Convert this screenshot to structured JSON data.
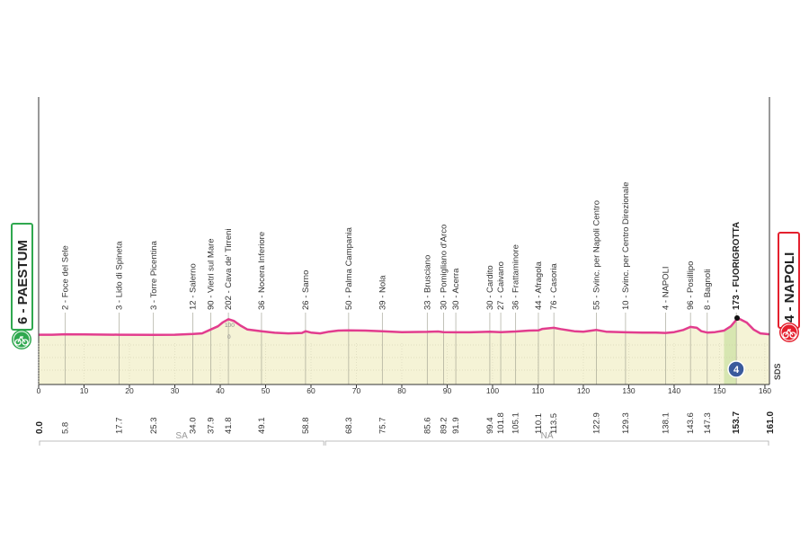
{
  "chart_data": {
    "type": "area",
    "x_range": [
      0,
      161
    ],
    "y_range": [
      0,
      300
    ],
    "x_ticks": [
      0,
      10,
      20,
      30,
      40,
      50,
      60,
      70,
      80,
      90,
      100,
      110,
      120,
      130,
      140,
      150,
      160
    ],
    "elevation_profile": [
      [
        0,
        6
      ],
      [
        3,
        6
      ],
      [
        5.8,
        8
      ],
      [
        10,
        7
      ],
      [
        17.7,
        6
      ],
      [
        25.3,
        5
      ],
      [
        30,
        6
      ],
      [
        34,
        9
      ],
      [
        36,
        12
      ],
      [
        37.9,
        30
      ],
      [
        39.5,
        45
      ],
      [
        40.5,
        62
      ],
      [
        41.8,
        78
      ],
      [
        43,
        70
      ],
      [
        44.5,
        48
      ],
      [
        46,
        30
      ],
      [
        49.1,
        22
      ],
      [
        52,
        15
      ],
      [
        55,
        12
      ],
      [
        58,
        14
      ],
      [
        58.8,
        22
      ],
      [
        60,
        16
      ],
      [
        62,
        12
      ],
      [
        64,
        20
      ],
      [
        66,
        25
      ],
      [
        68.3,
        26
      ],
      [
        72,
        25
      ],
      [
        75.7,
        22
      ],
      [
        80,
        18
      ],
      [
        85.6,
        19
      ],
      [
        88,
        21
      ],
      [
        89.2,
        18
      ],
      [
        91.9,
        17
      ],
      [
        95,
        17
      ],
      [
        99.4,
        20
      ],
      [
        101.8,
        18
      ],
      [
        105.1,
        21
      ],
      [
        108,
        25
      ],
      [
        110.1,
        26
      ],
      [
        111,
        33
      ],
      [
        113.5,
        38
      ],
      [
        115,
        32
      ],
      [
        118,
        22
      ],
      [
        120,
        20
      ],
      [
        122.9,
        28
      ],
      [
        125,
        20
      ],
      [
        129.3,
        17
      ],
      [
        133,
        16
      ],
      [
        136,
        16
      ],
      [
        138.1,
        14
      ],
      [
        140,
        18
      ],
      [
        142,
        28
      ],
      [
        143.6,
        42
      ],
      [
        145,
        38
      ],
      [
        146,
        22
      ],
      [
        147.3,
        16
      ],
      [
        149,
        18
      ],
      [
        151,
        25
      ],
      [
        152.5,
        45
      ],
      [
        153.7,
        75
      ],
      [
        154.5,
        78
      ],
      [
        156,
        62
      ],
      [
        157.5,
        30
      ],
      [
        159,
        12
      ],
      [
        161,
        8
      ]
    ],
    "start": {
      "label": "6 - PAESTUM",
      "color": "#2fa84f"
    },
    "finish": {
      "label": "4 - NAPOLI",
      "color": "#e4202e"
    },
    "waypoints": [
      {
        "km": 5.8,
        "label": "2 - Foce del Sele",
        "km_label": "5.8"
      },
      {
        "km": 17.7,
        "label": "3 - Lido di Spineta",
        "km_label": "17.7"
      },
      {
        "km": 25.3,
        "label": "3 - Torre Picentina",
        "km_label": "25.3"
      },
      {
        "km": 34.0,
        "label": "12 - Salerno",
        "km_label": "34.0"
      },
      {
        "km": 37.9,
        "label": "90 - Vietri sul Mare",
        "km_label": "37.9"
      },
      {
        "km": 41.8,
        "label": "202 - Cava de' Tirreni",
        "km_label": "41.8"
      },
      {
        "km": 49.1,
        "label": "36 - Nocera Inferiore",
        "km_label": "49.1"
      },
      {
        "km": 58.8,
        "label": "26 - Sarno",
        "km_label": "58.8"
      },
      {
        "km": 68.3,
        "label": "50 - Palma Campania",
        "km_label": "68.3"
      },
      {
        "km": 75.7,
        "label": "39 - Nola",
        "km_label": "75.7"
      },
      {
        "km": 85.6,
        "label": "33 - Brusciano",
        "km_label": "85.6"
      },
      {
        "km": 89.2,
        "label": "30 - Pomigliano d'Arco",
        "km_label": "89.2"
      },
      {
        "km": 91.9,
        "label": "30 - Acerra",
        "km_label": "91.9"
      },
      {
        "km": 99.4,
        "label": "30 - Cardito",
        "km_label": "99.4"
      },
      {
        "km": 101.8,
        "label": "27 - Caivano",
        "km_label": "101.8"
      },
      {
        "km": 105.1,
        "label": "36 - Frattaminore",
        "km_label": "105.1"
      },
      {
        "km": 110.1,
        "label": "44 - Afragola",
        "km_label": "110.1"
      },
      {
        "km": 113.5,
        "label": "76 - Casoria",
        "km_label": "113.5"
      },
      {
        "km": 122.9,
        "label": "55 - Svinc. per Napoli Centro",
        "km_label": "122.9"
      },
      {
        "km": 129.3,
        "label": "10 - Svinc. per Centro Direzionale",
        "km_label": "129.3"
      },
      {
        "km": 138.1,
        "label": "4 - NAPOLI",
        "km_label": "138.1"
      },
      {
        "km": 143.6,
        "label": "96 - Posillipo",
        "km_label": "143.6"
      },
      {
        "km": 147.3,
        "label": "8 - Bagnoli",
        "km_label": "147.3"
      },
      {
        "km": 153.7,
        "label": "173 - FUORIGROTTA",
        "km_label": "153.7",
        "bold": true
      }
    ],
    "start_km_label": "0.0",
    "finish_km_label": "161.0",
    "regions": [
      {
        "label": "SA",
        "from": 0,
        "to": 63
      },
      {
        "label": "NA",
        "from": 63,
        "to": 161
      }
    ],
    "altitude_marker": "100",
    "altitude_marker_small": "0",
    "finish_circuit_badge": "4",
    "brand_mark": "SDS",
    "colors": {
      "profile_line": "#e23d8e",
      "profile_fill": "#f5f3d6",
      "finish_fill": "#d7e6b1",
      "axis": "#333333"
    }
  }
}
